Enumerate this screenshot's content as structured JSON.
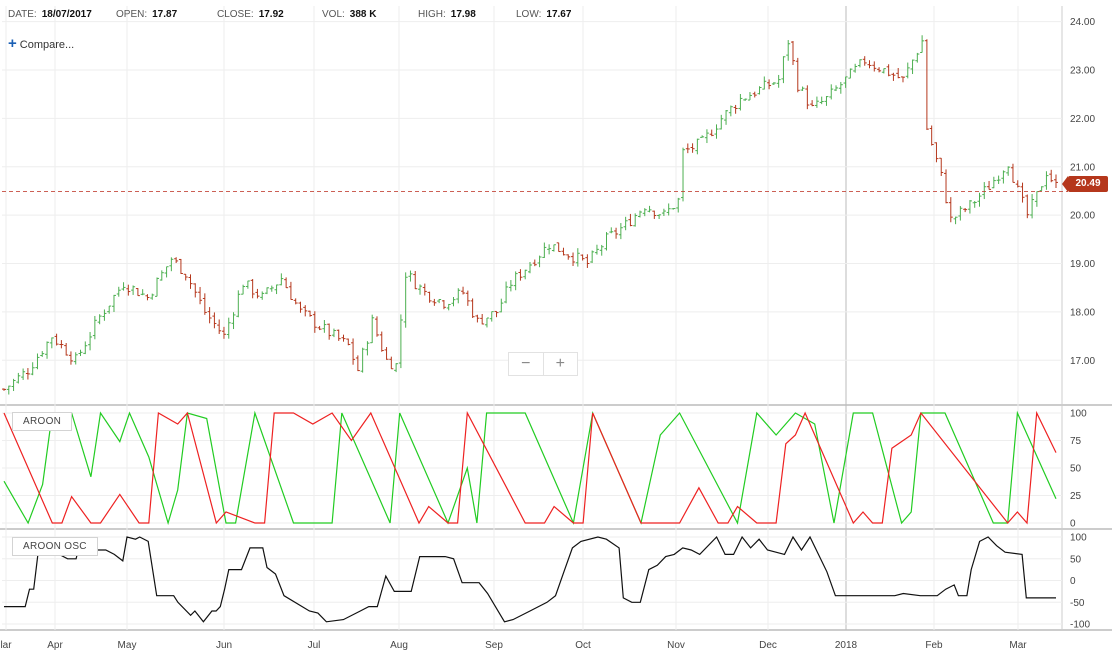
{
  "header": {
    "date_label": "DATE:",
    "date_value": "18/07/2017",
    "open_label": "OPEN:",
    "open_value": "17.87",
    "close_label": "CLOSE:",
    "close_value": "17.92",
    "vol_label": "VOL:",
    "vol_value": "388 K",
    "high_label": "HIGH:",
    "high_value": "17.98",
    "low_label": "LOW:",
    "low_value": "17.67",
    "compare_label": "Compare..."
  },
  "zoom": {
    "minus": "−",
    "plus": "+"
  },
  "last_price": "20.49",
  "colors": {
    "up": "#4caf50",
    "down": "#b5371c",
    "aroon_up": "#22cc22",
    "aroon_down": "#ee2222",
    "osc": "#111111"
  },
  "chart_data": [
    {
      "type": "ohlc",
      "panel": "price",
      "y_ticks": [
        "24.00",
        "23.00",
        "22.00",
        "21.00",
        "20.00",
        "19.00",
        "18.00",
        "17.00"
      ],
      "ylim": [
        16.2,
        24.2
      ],
      "x_ticks": [
        "lar",
        "Apr",
        "May",
        "Jun",
        "Jul",
        "Aug",
        "Sep",
        "Oct",
        "Nov",
        "Dec",
        "2018",
        "Feb",
        "Mar"
      ],
      "last_value": 20.49,
      "close_path": [
        [
          0,
          16.4
        ],
        [
          5,
          16.8
        ],
        [
          10,
          17.5
        ],
        [
          15,
          17.0
        ],
        [
          20,
          17.9
        ],
        [
          25,
          18.6
        ],
        [
          30,
          18.3
        ],
        [
          35,
          19.1
        ],
        [
          38,
          18.8
        ],
        [
          42,
          18.0
        ],
        [
          46,
          17.5
        ],
        [
          50,
          18.6
        ],
        [
          54,
          18.3
        ],
        [
          58,
          18.7
        ],
        [
          62,
          18.0
        ],
        [
          66,
          17.7
        ],
        [
          72,
          17.3
        ],
        [
          74,
          16.8
        ],
        [
          77,
          17.8
        ],
        [
          80,
          17.0
        ],
        [
          82,
          16.9
        ],
        [
          84,
          18.8
        ],
        [
          88,
          18.4
        ],
        [
          92,
          18.2
        ],
        [
          96,
          18.4
        ],
        [
          99,
          17.8
        ],
        [
          103,
          18.0
        ],
        [
          106,
          18.6
        ],
        [
          110,
          19.0
        ],
        [
          114,
          19.4
        ],
        [
          118,
          19.2
        ],
        [
          122,
          19.0
        ],
        [
          126,
          19.5
        ],
        [
          130,
          19.8
        ],
        [
          134,
          20.2
        ],
        [
          138,
          20.0
        ],
        [
          141,
          20.3
        ],
        [
          142,
          21.3
        ],
        [
          146,
          21.5
        ],
        [
          150,
          22.0
        ],
        [
          154,
          22.4
        ],
        [
          158,
          22.6
        ],
        [
          162,
          22.8
        ],
        [
          164,
          23.6
        ],
        [
          166,
          22.7
        ],
        [
          169,
          22.2
        ],
        [
          172,
          22.4
        ],
        [
          176,
          22.8
        ],
        [
          180,
          23.2
        ],
        [
          184,
          23.0
        ],
        [
          188,
          22.8
        ],
        [
          190,
          23.2
        ],
        [
          192,
          23.6
        ],
        [
          193,
          21.8
        ],
        [
          196,
          20.8
        ],
        [
          198,
          19.9
        ],
        [
          202,
          20.2
        ],
        [
          206,
          20.6
        ],
        [
          210,
          21.1
        ],
        [
          212,
          20.5
        ],
        [
          214,
          20.0
        ],
        [
          216,
          20.4
        ],
        [
          218,
          20.9
        ],
        [
          220,
          20.6
        ]
      ]
    },
    {
      "type": "line",
      "panel": "aroon",
      "label": "AROON",
      "y_ticks": [
        "100",
        "75",
        "50",
        "25",
        "0"
      ],
      "ylim": [
        0,
        100
      ],
      "series": [
        {
          "color": "#22cc22",
          "points": [
            [
              0,
              38
            ],
            [
              5,
              0
            ],
            [
              8,
              35
            ],
            [
              10,
              100
            ],
            [
              14,
              100
            ],
            [
              18,
              42
            ],
            [
              20,
              100
            ],
            [
              24,
              74
            ],
            [
              26,
              100
            ],
            [
              30,
              60
            ],
            [
              34,
              0
            ],
            [
              36,
              30
            ],
            [
              38,
              100
            ],
            [
              42,
              95
            ],
            [
              46,
              0
            ],
            [
              48,
              0
            ],
            [
              52,
              100
            ],
            [
              60,
              0
            ],
            [
              68,
              0
            ],
            [
              70,
              100
            ],
            [
              80,
              0
            ],
            [
              82,
              100
            ],
            [
              92,
              0
            ],
            [
              96,
              50
            ],
            [
              98,
              0
            ],
            [
              100,
              100
            ],
            [
              108,
              100
            ],
            [
              118,
              0
            ],
            [
              122,
              100
            ],
            [
              132,
              0
            ],
            [
              136,
              80
            ],
            [
              140,
              100
            ],
            [
              152,
              0
            ],
            [
              156,
              100
            ],
            [
              160,
              80
            ],
            [
              164,
              100
            ],
            [
              168,
              90
            ],
            [
              172,
              0
            ],
            [
              176,
              100
            ],
            [
              180,
              100
            ],
            [
              186,
              0
            ],
            [
              188,
              10
            ],
            [
              190,
              100
            ],
            [
              195,
              100
            ],
            [
              205,
              0
            ],
            [
              208,
              0
            ],
            [
              210,
              100
            ],
            [
              218,
              22
            ]
          ]
        },
        {
          "color": "#ee2222",
          "points": [
            [
              0,
              100
            ],
            [
              10,
              0
            ],
            [
              12,
              0
            ],
            [
              14,
              24
            ],
            [
              18,
              0
            ],
            [
              20,
              0
            ],
            [
              24,
              26
            ],
            [
              28,
              0
            ],
            [
              30,
              0
            ],
            [
              32,
              100
            ],
            [
              36,
              90
            ],
            [
              38,
              100
            ],
            [
              44,
              0
            ],
            [
              46,
              10
            ],
            [
              52,
              0
            ],
            [
              54,
              0
            ],
            [
              56,
              100
            ],
            [
              60,
              100
            ],
            [
              64,
              90
            ],
            [
              68,
              100
            ],
            [
              72,
              75
            ],
            [
              76,
              100
            ],
            [
              86,
              0
            ],
            [
              88,
              15
            ],
            [
              92,
              0
            ],
            [
              94,
              0
            ],
            [
              96,
              100
            ],
            [
              108,
              0
            ],
            [
              112,
              0
            ],
            [
              114,
              15
            ],
            [
              118,
              0
            ],
            [
              120,
              0
            ],
            [
              122,
              100
            ],
            [
              132,
              0
            ],
            [
              140,
              0
            ],
            [
              144,
              32
            ],
            [
              148,
              0
            ],
            [
              150,
              0
            ],
            [
              152,
              15
            ],
            [
              156,
              0
            ],
            [
              160,
              0
            ],
            [
              162,
              72
            ],
            [
              164,
              80
            ],
            [
              166,
              100
            ],
            [
              176,
              0
            ],
            [
              178,
              10
            ],
            [
              180,
              0
            ],
            [
              182,
              0
            ],
            [
              184,
              68
            ],
            [
              188,
              80
            ],
            [
              190,
              100
            ],
            [
              208,
              0
            ],
            [
              210,
              10
            ],
            [
              212,
              0
            ],
            [
              214,
              100
            ],
            [
              218,
              64
            ]
          ]
        }
      ]
    },
    {
      "type": "line",
      "panel": "oscillator",
      "label": "AROON OSC",
      "y_ticks": [
        "100",
        "50",
        "0",
        "-50",
        "-100"
      ],
      "ylim": [
        -100,
        100
      ],
      "series": [
        {
          "color": "#111111",
          "points": [
            [
              0,
              -60
            ],
            [
              5,
              -60
            ],
            [
              6,
              -20
            ],
            [
              7,
              -20
            ],
            [
              8,
              60
            ],
            [
              10,
              60
            ],
            [
              13,
              60
            ],
            [
              15,
              50
            ],
            [
              17,
              50
            ],
            [
              18,
              90
            ],
            [
              20,
              70
            ],
            [
              24,
              70
            ],
            [
              26,
              60
            ],
            [
              28,
              45
            ],
            [
              29,
              100
            ],
            [
              31,
              95
            ],
            [
              32,
              100
            ],
            [
              34,
              90
            ],
            [
              36,
              -35
            ],
            [
              40,
              -35
            ],
            [
              41,
              -50
            ],
            [
              44,
              -80
            ],
            [
              45,
              -70
            ],
            [
              47,
              -95
            ],
            [
              49,
              -70
            ],
            [
              50,
              -70
            ],
            [
              51,
              -60
            ],
            [
              52,
              -20
            ],
            [
              53,
              25
            ],
            [
              56,
              25
            ],
            [
              58,
              75
            ],
            [
              61,
              75
            ],
            [
              62,
              30
            ],
            [
              64,
              15
            ],
            [
              66,
              -35
            ],
            [
              72,
              -70
            ],
            [
              74,
              -75
            ],
            [
              76,
              -95
            ],
            [
              80,
              -90
            ],
            [
              84,
              -70
            ],
            [
              86,
              -60
            ],
            [
              88,
              -60
            ],
            [
              90,
              10
            ],
            [
              92,
              -25
            ],
            [
              96,
              -25
            ],
            [
              98,
              55
            ],
            [
              104,
              55
            ],
            [
              106,
              50
            ],
            [
              108,
              -5
            ],
            [
              112,
              -5
            ],
            [
              114,
              -30
            ],
            [
              118,
              -95
            ],
            [
              120,
              -90
            ],
            [
              124,
              -70
            ],
            [
              126,
              -60
            ],
            [
              128,
              -50
            ],
            [
              130,
              -35
            ],
            [
              132,
              20
            ],
            [
              134,
              75
            ],
            [
              136,
              90
            ],
            [
              140,
              100
            ],
            [
              142,
              95
            ],
            [
              145,
              75
            ],
            [
              146,
              -40
            ],
            [
              148,
              -50
            ],
            [
              150,
              -50
            ],
            [
              152,
              25
            ],
            [
              154,
              35
            ],
            [
              156,
              55
            ],
            [
              158,
              60
            ],
            [
              160,
              75
            ],
            [
              162,
              70
            ],
            [
              164,
              60
            ],
            [
              168,
              100
            ],
            [
              170,
              60
            ],
            [
              172,
              60
            ],
            [
              174,
              100
            ],
            [
              176,
              75
            ],
            [
              178,
              95
            ],
            [
              180,
              70
            ],
            [
              182,
              65
            ],
            [
              184,
              60
            ],
            [
              186,
              100
            ],
            [
              188,
              70
            ],
            [
              190,
              100
            ],
            [
              194,
              20
            ],
            [
              196,
              -35
            ],
            [
              202,
              -35
            ],
            [
              210,
              -35
            ],
            [
              212,
              -30
            ],
            [
              216,
              -35
            ],
            [
              220,
              -35
            ],
            [
              222,
              -20
            ],
            [
              224,
              -10
            ],
            [
              225,
              -35
            ],
            [
              227,
              -35
            ],
            [
              228,
              25
            ],
            [
              230,
              90
            ],
            [
              232,
              100
            ],
            [
              234,
              80
            ],
            [
              236,
              65
            ],
            [
              240,
              60
            ],
            [
              241,
              -40
            ],
            [
              248,
              -40
            ]
          ]
        }
      ]
    }
  ]
}
